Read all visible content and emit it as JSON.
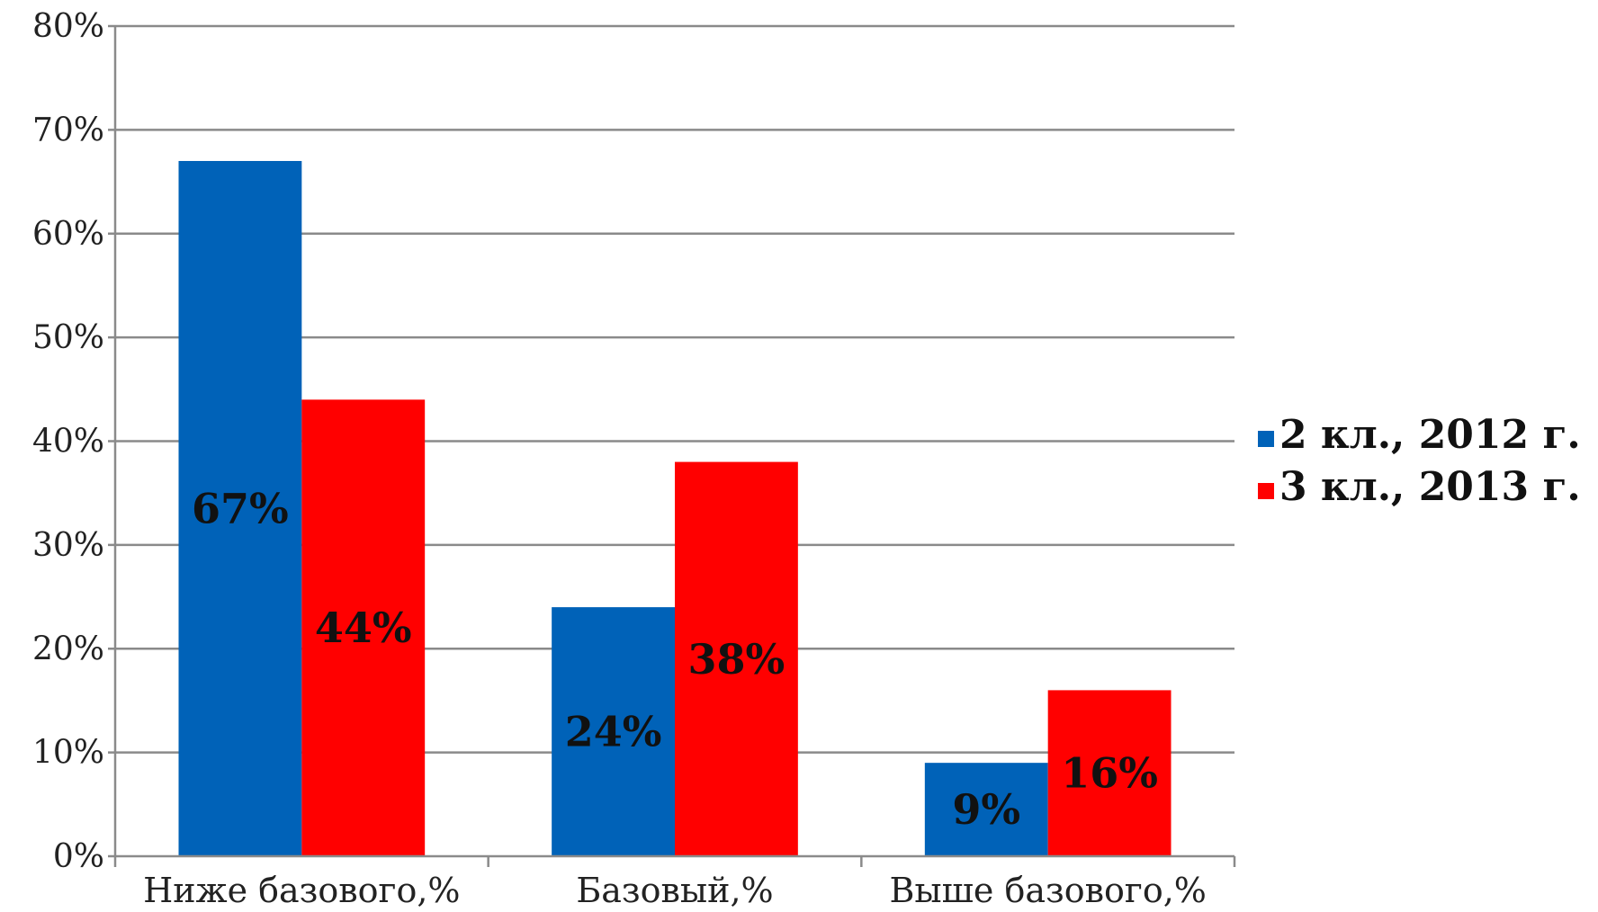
{
  "chart_data": {
    "type": "bar",
    "categories": [
      "Ниже базового,%",
      "Базовый,%",
      "Выше базового,%"
    ],
    "series": [
      {
        "name": "2 кл., 2012 г.",
        "color": "#0062b8",
        "values": [
          67,
          24,
          9
        ],
        "labels": [
          "67%",
          "24%",
          "9%"
        ]
      },
      {
        "name": "3 кл., 2013 г.",
        "color": "#ff0000",
        "values": [
          44,
          38,
          16
        ],
        "labels": [
          "44%",
          "38%",
          "16%"
        ]
      }
    ],
    "ylim": [
      0,
      80
    ],
    "yticks": [
      "0%",
      "10%",
      "20%",
      "30%",
      "40%",
      "50%",
      "60%",
      "70%",
      "80%"
    ],
    "grid": true,
    "legend": "right",
    "title": "",
    "xlabel": "",
    "ylabel": ""
  }
}
